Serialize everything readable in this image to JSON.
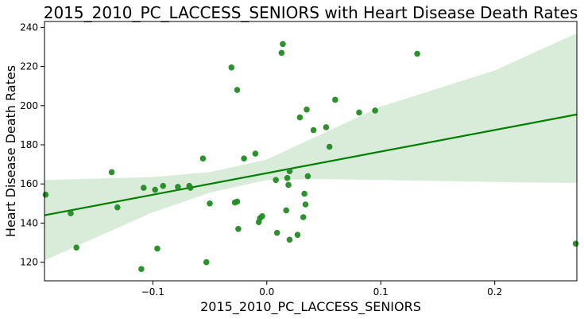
{
  "chart_data": {
    "type": "scatter",
    "title": "2015_2010_PC_LACCESS_SENIORS with Heart Disease Death Rates",
    "xlabel": "2015_2010_PC_LACCESS_SENIORS",
    "ylabel": "Heart Disease Death Rates",
    "xlim": [
      -0.195,
      0.272
    ],
    "ylim": [
      110.5,
      243
    ],
    "xticks": [
      -0.1,
      0.0,
      0.1,
      0.2
    ],
    "xtick_labels": [
      "−0.1",
      "0.0",
      "0.1",
      "0.2"
    ],
    "yticks": [
      120,
      140,
      160,
      180,
      200,
      220,
      240
    ],
    "ytick_labels": [
      "120",
      "140",
      "160",
      "180",
      "200",
      "220",
      "240"
    ],
    "grid": false,
    "colors": {
      "points": "#228b22",
      "regression_line": "#008000",
      "confidence_band": "#d9ecd9"
    },
    "regression": {
      "x_start": -0.195,
      "y_start": 144.0,
      "x_end": 0.272,
      "y_end": 195.5,
      "ci_lower": [
        [
          -0.195,
          121.0
        ],
        [
          -0.1,
          145.5
        ],
        [
          -0.05,
          155.5
        ],
        [
          0.0,
          162.0
        ],
        [
          0.05,
          162.5
        ],
        [
          0.1,
          162.0
        ],
        [
          0.2,
          161.0
        ],
        [
          0.272,
          160.5
        ]
      ],
      "ci_upper": [
        [
          -0.195,
          162.0
        ],
        [
          -0.1,
          163.5
        ],
        [
          -0.05,
          166.0
        ],
        [
          0.0,
          172.5
        ],
        [
          0.05,
          186.0
        ],
        [
          0.1,
          199.5
        ],
        [
          0.2,
          218.0
        ],
        [
          0.272,
          237.0
        ]
      ]
    },
    "points": [
      {
        "x": -0.194,
        "y": 154.5
      },
      {
        "x": -0.172,
        "y": 145.0
      },
      {
        "x": -0.167,
        "y": 127.5
      },
      {
        "x": -0.136,
        "y": 166.0
      },
      {
        "x": -0.131,
        "y": 148.0
      },
      {
        "x": -0.11,
        "y": 116.5
      },
      {
        "x": -0.108,
        "y": 158.0
      },
      {
        "x": -0.098,
        "y": 157.0
      },
      {
        "x": -0.096,
        "y": 127.0
      },
      {
        "x": -0.091,
        "y": 159.0
      },
      {
        "x": -0.078,
        "y": 158.5
      },
      {
        "x": -0.068,
        "y": 159.0
      },
      {
        "x": -0.067,
        "y": 158.0
      },
      {
        "x": -0.056,
        "y": 173.0
      },
      {
        "x": -0.053,
        "y": 120.0
      },
      {
        "x": -0.05,
        "y": 150.0
      },
      {
        "x": -0.031,
        "y": 219.5
      },
      {
        "x": -0.028,
        "y": 150.5
      },
      {
        "x": -0.026,
        "y": 151.0
      },
      {
        "x": -0.026,
        "y": 208.0
      },
      {
        "x": -0.025,
        "y": 137.0
      },
      {
        "x": -0.02,
        "y": 173.0
      },
      {
        "x": -0.01,
        "y": 175.5
      },
      {
        "x": -0.007,
        "y": 140.5
      },
      {
        "x": -0.006,
        "y": 142.5
      },
      {
        "x": -0.004,
        "y": 143.5
      },
      {
        "x": 0.008,
        "y": 162.0
      },
      {
        "x": 0.009,
        "y": 135.0
      },
      {
        "x": 0.013,
        "y": 227.0
      },
      {
        "x": 0.014,
        "y": 231.5
      },
      {
        "x": 0.017,
        "y": 146.5
      },
      {
        "x": 0.018,
        "y": 163.0
      },
      {
        "x": 0.019,
        "y": 159.5
      },
      {
        "x": 0.02,
        "y": 131.5
      },
      {
        "x": 0.02,
        "y": 166.5
      },
      {
        "x": 0.027,
        "y": 134.0
      },
      {
        "x": 0.029,
        "y": 194.0
      },
      {
        "x": 0.032,
        "y": 143.0
      },
      {
        "x": 0.033,
        "y": 155.0
      },
      {
        "x": 0.034,
        "y": 149.5
      },
      {
        "x": 0.035,
        "y": 198.0
      },
      {
        "x": 0.036,
        "y": 164.0
      },
      {
        "x": 0.041,
        "y": 187.5
      },
      {
        "x": 0.052,
        "y": 189.0
      },
      {
        "x": 0.055,
        "y": 179.0
      },
      {
        "x": 0.06,
        "y": 203.0
      },
      {
        "x": 0.081,
        "y": 196.5
      },
      {
        "x": 0.095,
        "y": 197.5
      },
      {
        "x": 0.132,
        "y": 226.5
      },
      {
        "x": 0.271,
        "y": 129.5
      }
    ]
  }
}
